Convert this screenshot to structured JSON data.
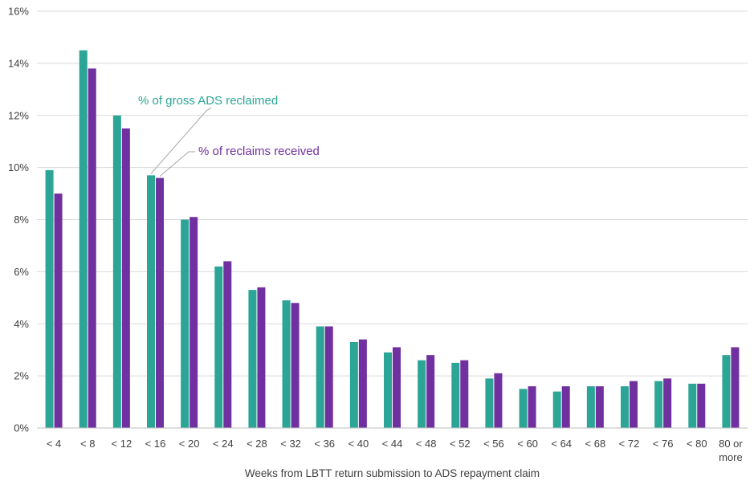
{
  "chart_data": {
    "type": "bar",
    "xlabel": "Weeks from LBTT return submission to ADS repayment claim",
    "ylabel": "",
    "ylim": [
      0,
      16
    ],
    "ytick_step": 2,
    "ytick_suffix": "%",
    "grid": true,
    "categories": [
      "< 4",
      "< 8",
      "< 12",
      "< 16",
      "< 20",
      "< 24",
      "< 28",
      "< 32",
      "< 36",
      "< 40",
      "< 44",
      "< 48",
      "< 52",
      "< 56",
      "< 60",
      "< 64",
      "< 68",
      "< 72",
      "< 76",
      "< 80",
      "80 or more"
    ],
    "series": [
      {
        "name": "% of gross ADS reclaimed",
        "color": "#2ca596",
        "values": [
          9.9,
          14.5,
          12.0,
          9.7,
          8.0,
          6.2,
          5.3,
          4.9,
          3.9,
          3.3,
          2.9,
          2.6,
          2.5,
          1.9,
          1.5,
          1.4,
          1.6,
          1.6,
          1.8,
          1.7,
          2.8
        ]
      },
      {
        "name": "% of reclaims received",
        "color": "#7030a0",
        "values": [
          9.0,
          13.8,
          11.5,
          9.6,
          8.1,
          6.4,
          5.4,
          4.8,
          3.9,
          3.4,
          3.1,
          2.8,
          2.6,
          2.1,
          1.6,
          1.6,
          1.6,
          1.8,
          1.9,
          1.7,
          3.1
        ]
      }
    ],
    "annotations": [
      {
        "text": "% of gross ADS reclaimed",
        "series": 0,
        "category": "< 16",
        "color": "#2ca596"
      },
      {
        "text": "% of reclaims received",
        "series": 1,
        "category": "< 16",
        "color": "#7030a0"
      }
    ]
  }
}
